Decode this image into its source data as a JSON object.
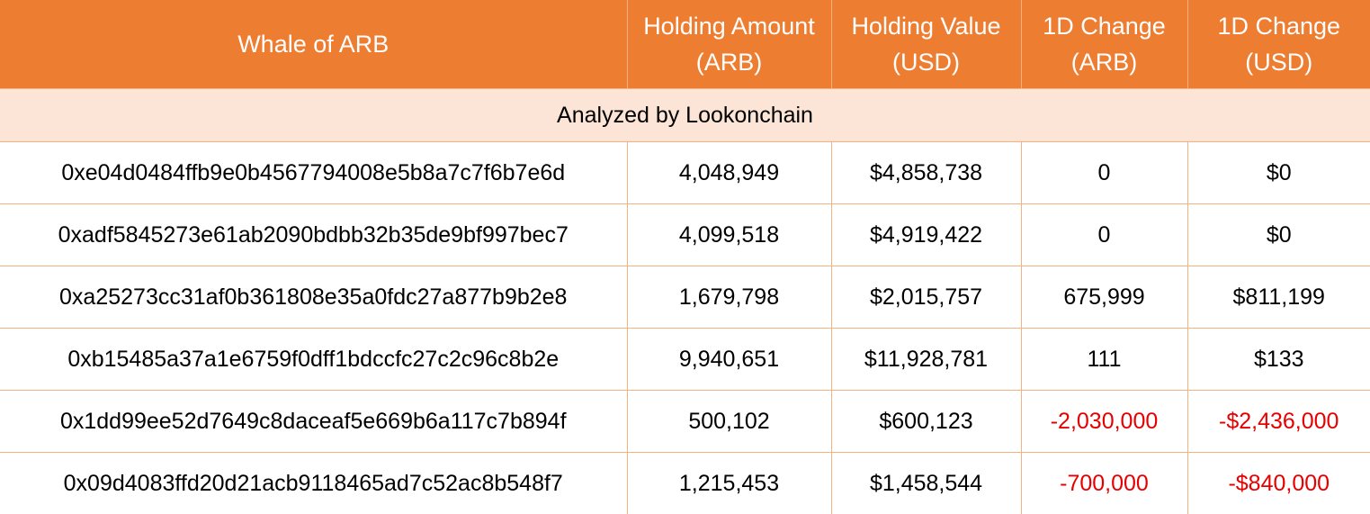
{
  "table": {
    "headers": [
      {
        "line1": "Whale of ARB",
        "line2": ""
      },
      {
        "line1": "Holding Amount",
        "line2": "(ARB)"
      },
      {
        "line1": "Holding Value",
        "line2": "(USD)"
      },
      {
        "line1": "1D Change",
        "line2": "(ARB)"
      },
      {
        "line1": "1D Change",
        "line2": "(USD)"
      }
    ],
    "subtitle": "Analyzed by Lookonchain",
    "rows": [
      {
        "address": "0xe04d0484ffb9e0b4567794008e5b8a7c7f6b7e6d",
        "amount": "4,048,949",
        "value": "$4,858,738",
        "change_arb": "0",
        "change_usd": "$0"
      },
      {
        "address": "0xadf5845273e61ab2090bdbb32b35de9bf997bec7",
        "amount": "4,099,518",
        "value": "$4,919,422",
        "change_arb": "0",
        "change_usd": "$0"
      },
      {
        "address": "0xa25273cc31af0b361808e35a0fdc27a877b9b2e8",
        "amount": "1,679,798",
        "value": "$2,015,757",
        "change_arb": "675,999",
        "change_usd": "$811,199"
      },
      {
        "address": "0xb15485a37a1e6759f0dff1bdccfc27c2c96c8b2e",
        "amount": "9,940,651",
        "value": "$11,928,781",
        "change_arb": "111",
        "change_usd": "$133"
      },
      {
        "address": "0x1dd99ee52d7649c8daceaf5e669b6a117c7b894f",
        "amount": "500,102",
        "value": "$600,123",
        "change_arb": "-2,030,000",
        "change_usd": "-$2,436,000"
      },
      {
        "address": "0x09d4083ffd20d21acb9118465ad7c52ac8b548f7",
        "amount": "1,215,453",
        "value": "$1,458,544",
        "change_arb": "-700,000",
        "change_usd": "-$840,000"
      }
    ]
  },
  "colors": {
    "header_bg": "#ED7D31",
    "subtitle_bg": "#FCE4D6",
    "border": "#F4B183",
    "negative_text": "#E60000"
  }
}
